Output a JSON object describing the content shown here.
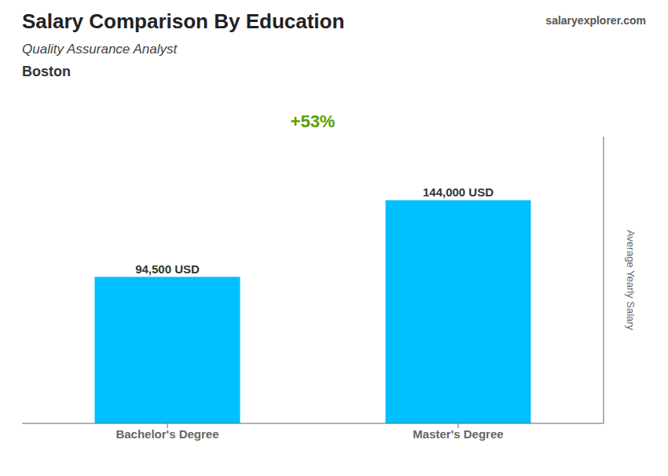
{
  "chart_data": {
    "type": "bar",
    "title": "Salary Comparison By Education",
    "subtitle": "Quality Assurance Analyst",
    "y_label": "Average Yearly Salary",
    "annotations": [
      "Boston",
      "+53%",
      "salaryexplorer.com"
    ],
    "categories": [
      "Bachelor's Degree",
      "Master's Degree"
    ],
    "values": [
      94500,
      144000
    ],
    "value_labels": [
      "94,500 USD",
      "144,000 USD"
    ],
    "data_labels": true,
    "color": "#00BFFF",
    "ylim": [
      0,
      185000
    ],
    "tick_labels": "x",
    "grid": false
  }
}
